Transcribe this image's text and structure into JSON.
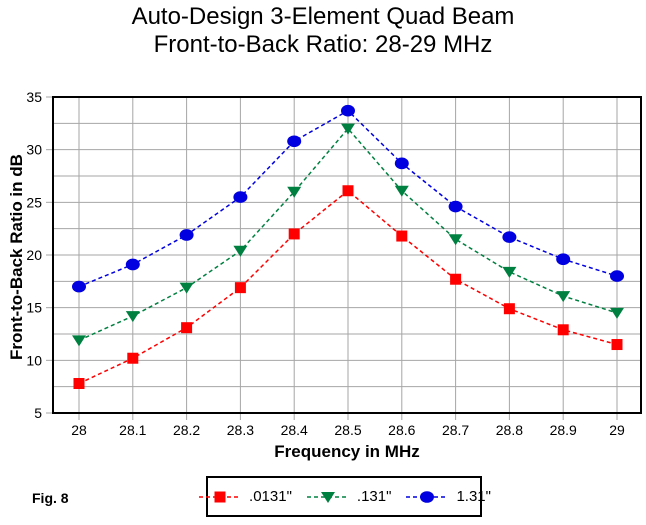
{
  "title": {
    "line1": "Auto-Design 3-Element Quad Beam",
    "line2": "Front-to-Back Ratio:  28-29 MHz"
  },
  "figure_label": "Fig. 8",
  "colors": {
    "grid": "#a6a6a6",
    "axis": "#000000",
    "background": "#ffffff"
  },
  "chart_data": {
    "type": "line",
    "title": "Auto-Design 3-Element Quad Beam — Front-to-Back Ratio: 28-29 MHz",
    "xlabel": "Frequency in MHz",
    "ylabel": "Front-to-Back Ratio in dB",
    "x": [
      28,
      28.1,
      28.2,
      28.3,
      28.4,
      28.5,
      28.6,
      28.7,
      28.8,
      28.9,
      29
    ],
    "xtick_labels": [
      "28",
      "28.1",
      "28.2",
      "28.3",
      "28.4",
      "28.5",
      "28.6",
      "28.7",
      "28.8",
      "28.9",
      "29"
    ],
    "ylim": [
      5,
      35
    ],
    "yticks": [
      5,
      10,
      15,
      20,
      25,
      30,
      35
    ],
    "ygrid_step": 2.5,
    "grid_on": true,
    "legend_position": "bottom",
    "series": [
      {
        "name": ".0131\"",
        "color": "#ff0000",
        "marker": "square",
        "values": [
          7.8,
          10.2,
          13.1,
          16.9,
          22.0,
          26.1,
          21.8,
          17.7,
          14.9,
          12.9,
          11.5
        ]
      },
      {
        "name": ".131\"",
        "color": "#008040",
        "marker": "triangle-down",
        "values": [
          11.9,
          14.2,
          16.9,
          20.4,
          26.0,
          32.0,
          26.1,
          21.5,
          18.4,
          16.1,
          14.5
        ]
      },
      {
        "name": "1.31\"",
        "color": "#0000e0",
        "marker": "circle",
        "values": [
          17.0,
          19.1,
          21.9,
          25.5,
          30.8,
          33.7,
          28.7,
          24.6,
          21.7,
          19.6,
          18.0
        ]
      }
    ]
  }
}
